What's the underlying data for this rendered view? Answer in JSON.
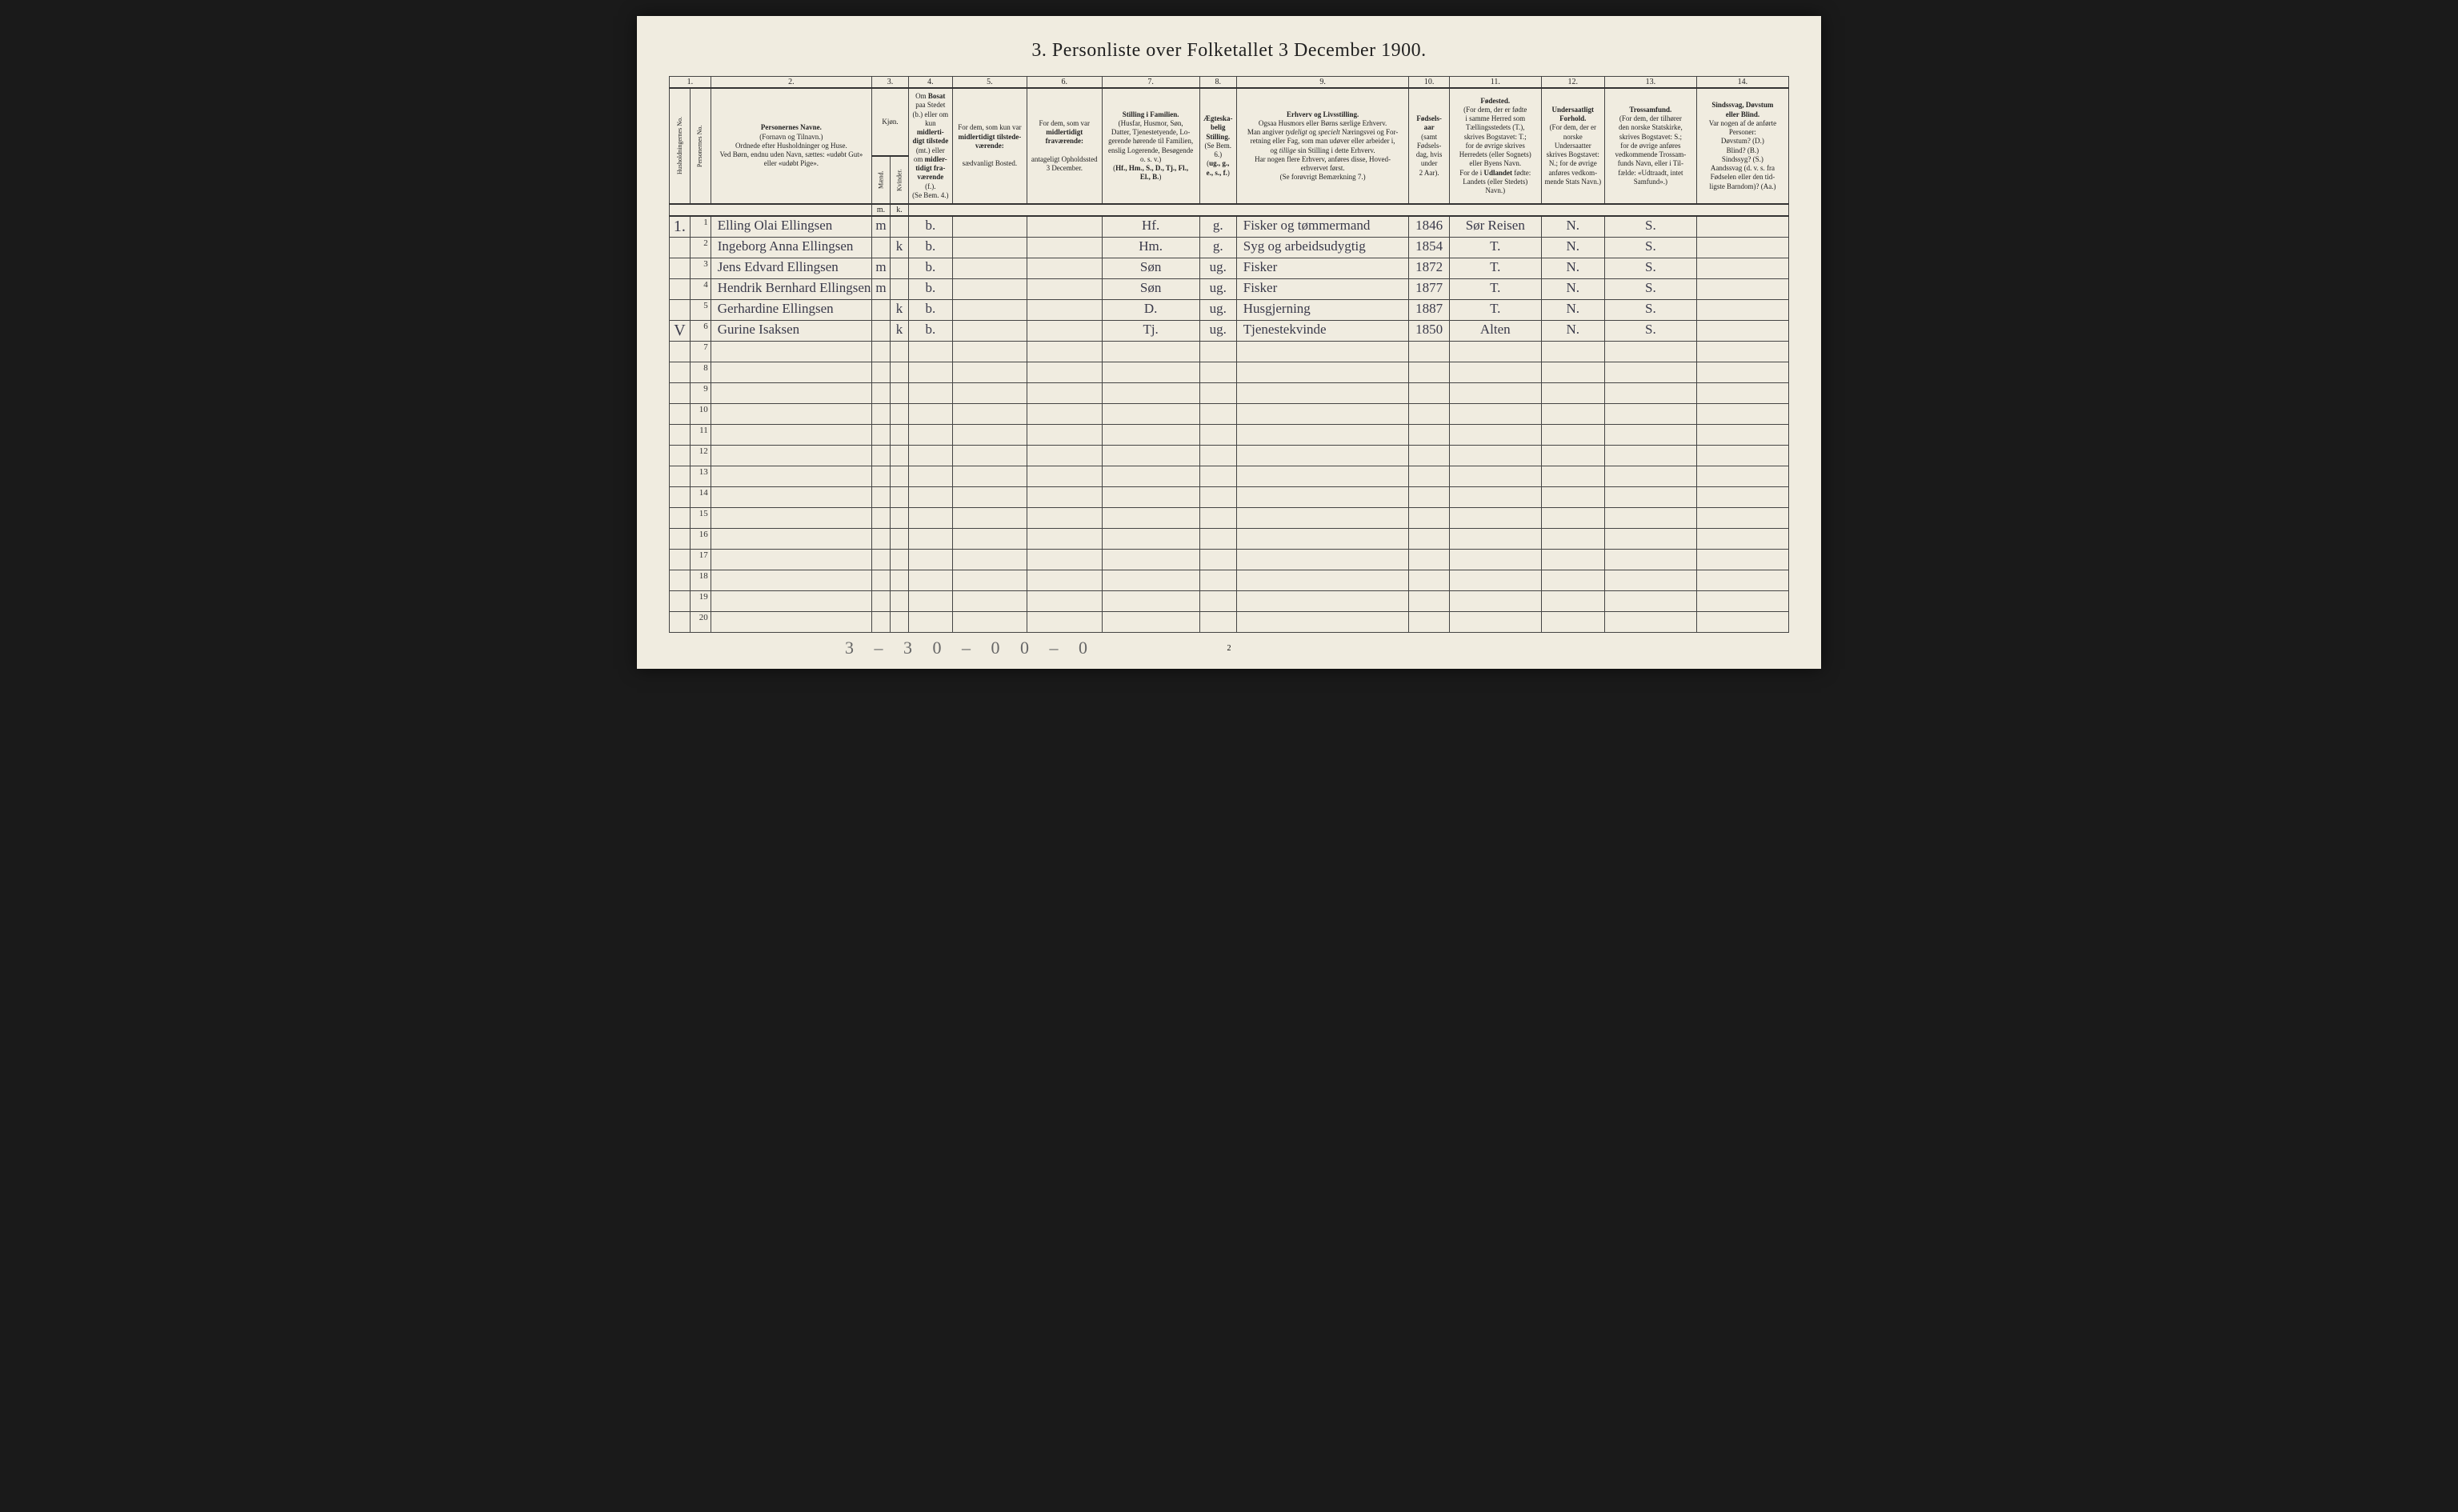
{
  "title": "3. Personliste over Folketallet 3 December 1900.",
  "colnums": [
    "1.",
    "2.",
    "3.",
    "4.",
    "5.",
    "6.",
    "7.",
    "8.",
    "9.",
    "10.",
    "11.",
    "12.",
    "13.",
    "14."
  ],
  "headers": {
    "c1a": "Husholdningernes No.",
    "c1b": "Personernes No.",
    "c2": "<strong>Personernes Navne.</strong><br>(Fornavn og Tilnavn.)<br>Ordnede efter Husholdninger og Huse.<br>Ved Børn, endnu uden Navn, sættes: «udøbt Gut»<br>eller «udøbt Pige».",
    "c3": "Kjøn.",
    "c3a": "Mænd.",
    "c3b": "Kvinder.",
    "c4": "Om <strong>Bosat</strong><br>paa Stedet<br>(b.) eller om<br>kun <strong>midlerti-<br>digt tilstede</strong><br>(mt.) eller<br>om <strong>midler-<br>tidigt fra-<br>værende</strong> (f.).<br>(Se Bem. 4.)",
    "c5": "For dem, som kun var<br><strong>midlertidigt tilstede-<br>værende:</strong><br><br>sædvanligt Bosted.",
    "c6": "For dem, som var<br><strong>midlertidigt<br>fraværende:</strong><br><br>antageligt Opholdssted<br>3 December.",
    "c7": "<strong>Stilling i Familien.</strong><br>(Husfar, Husmor, Søn,<br>Datter, Tjenestetyende, Lo-<br>gerende hørende til Familien,<br>enslig Logerende, Besøgende<br>o. s. v.)<br>(<strong>Hf., Hm., S., D., Tj., Fl.,<br>El., B.</strong>)",
    "c8": "<strong>Ægteska-<br>belig<br>Stilling.</strong><br>(Se Bem. 6.)<br>(<strong>ug., g.,<br>e., s., f.</strong>)",
    "c9": "<strong>Erhverv og Livsstilling.</strong><br>Ogsaa Husmors eller Børns særlige Erhverv.<br>Man angiver <em>tydeligt</em> og <em>specielt</em> Næringsvei og For-<br>retning eller Fag, som man udøver eller arbeider i,<br>og <em>tillige</em> sin Stilling i dette Erhverv.<br>Har nogen flere Erhverv, anføres disse, Hoved-<br>erhvervet først.<br>(Se forøvrigt Bemærkning 7.)",
    "c10": "<strong>Fødsels-<br>aar</strong><br>(samt<br>Fødsels-<br>dag, hvis<br>under<br>2 Aar).",
    "c11": "<strong>Fødested.</strong><br>(For dem, der er fødte<br>i samme Herred som<br>Tællingsstedets (T.),<br>skrives Bogstavet: T.;<br>for de øvrige skrives<br>Herredets (eller Sognets)<br>eller Byens Navn.<br>For de i <strong>Udlandet</strong> fødte:<br>Landets (eller Stedets)<br>Navn.)",
    "c12": "<strong>Undersaatligt<br>Forhold.</strong><br>(For dem, der er<br>norske Undersaatter<br>skrives Bogstavet:<br>N.; for de øvrige<br>anføres vedkom-<br>mende Stats Navn.)",
    "c13": "<strong>Trossamfund.</strong><br>(For dem, der tilhører<br>den norske Statskirke,<br>skrives Bogstavet: S.;<br>for de øvrige anføres<br>vedkommende Trossam-<br>funds Navn, eller i Til-<br>fælde: «Udtraadt, intet<br>Samfund».)",
    "c14": "<strong>Sindssvag, Døvstum<br>eller Blind.</strong><br>Var nogen af de anførte<br>Personer:<br>Døvstum? (D.)<br>Blind? (B.)<br>Sindssyg? (S.)<br>Aandssvag (d. v. s. fra<br>Fødselen eller den tid-<br>ligste Barndom)? (Aa.)"
  },
  "rows": [
    {
      "h": "1.",
      "n": "1",
      "name": "Elling Olai Ellingsen",
      "mk": "m",
      "kk": "",
      "b": "b.",
      "c5": "",
      "c6": "",
      "fam": "Hf.",
      "eg": "g.",
      "erv": "Fisker og tømmermand",
      "aar": "1846",
      "fst": "Sør Reisen",
      "und": "N.",
      "tro": "S.",
      "c14": ""
    },
    {
      "h": "",
      "n": "2",
      "name": "Ingeborg Anna Ellingsen",
      "mk": "",
      "kk": "k",
      "b": "b.",
      "c5": "",
      "c6": "",
      "fam": "Hm.",
      "eg": "g.",
      "erv": "Syg og arbeidsudygtig",
      "aar": "1854",
      "fst": "T.",
      "und": "N.",
      "tro": "S.",
      "c14": ""
    },
    {
      "h": "",
      "n": "3",
      "name": "Jens Edvard Ellingsen",
      "mk": "m",
      "kk": "",
      "b": "b.",
      "c5": "",
      "c6": "",
      "fam": "Søn",
      "eg": "ug.",
      "erv": "Fisker",
      "aar": "1872",
      "fst": "T.",
      "und": "N.",
      "tro": "S.",
      "c14": ""
    },
    {
      "h": "",
      "n": "4",
      "name": "Hendrik Bernhard Ellingsen",
      "mk": "m",
      "kk": "",
      "b": "b.",
      "c5": "",
      "c6": "",
      "fam": "Søn",
      "eg": "ug.",
      "erv": "Fisker",
      "aar": "1877",
      "fst": "T.",
      "und": "N.",
      "tro": "S.",
      "c14": ""
    },
    {
      "h": "",
      "n": "5",
      "name": "Gerhardine Ellingsen",
      "mk": "",
      "kk": "k",
      "b": "b.",
      "c5": "",
      "c6": "",
      "fam": "D.",
      "eg": "ug.",
      "erv": "Husgjerning",
      "aar": "1887",
      "fst": "T.",
      "und": "N.",
      "tro": "S.",
      "c14": ""
    },
    {
      "h": "V",
      "n": "6",
      "name": "Gurine Isaksen",
      "mk": "",
      "kk": "k",
      "b": "b.",
      "c5": "",
      "c6": "",
      "fam": "Tj.",
      "eg": "ug.",
      "erv": "Tjenestekvinde",
      "aar": "1850",
      "fst": "Alten",
      "und": "N.",
      "tro": "S.",
      "c14": ""
    }
  ],
  "empty_row_count": 14,
  "bottom_note": "3 – 3  0 – 0  0 – 0",
  "page_num": "2"
}
